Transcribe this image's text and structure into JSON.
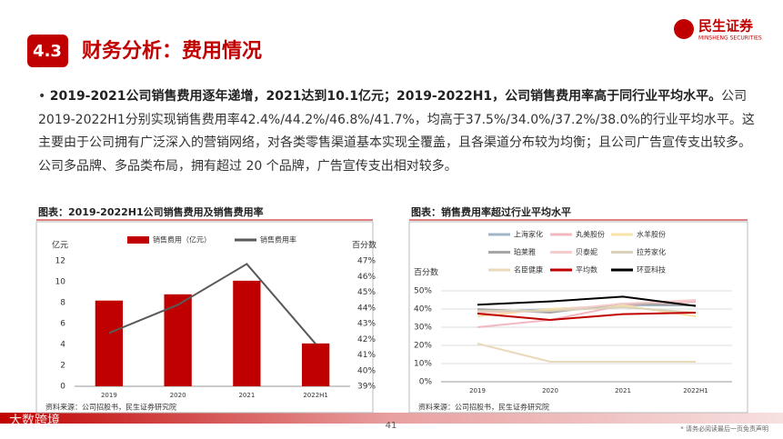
{
  "header": {
    "section": "4.3",
    "title": "财务分析：费用情况",
    "logo_cn": "民生证券",
    "logo_en": "MINSHENG SECURITIES"
  },
  "bullet": {
    "bold": "2019-2021公司销售费用逐年递增，2021达到10.1亿元；2019-2022H1，公司销售费用率高于同行业平均水平。",
    "text": "公司2019-2022H1分别实现销售费用率42.4%/44.2%/46.8%/41.7%，均高于37.5%/34.0%/37.2%/38.0%的行业平均水平。这主要由于公司拥有广泛深入的营销网络，对各类零售渠道基本实现全覆盖，且各渠道分布较为均衡；且公司广告宣传支出较多。公司多品牌、多品类布局，拥有超过 20 个品牌，广告宣传支出相对较多。"
  },
  "chart_data": [
    {
      "type": "bar",
      "title": "图表：2019-2022H1公司销售费用及销售费用率",
      "ylabel": "亿元",
      "y2label": "百分数",
      "source": "资料来源：公司招股书，民生证券研究院",
      "categories": [
        "2019",
        "2020",
        "2021",
        "2022H1"
      ],
      "series": [
        {
          "name": "销售费用（亿元）",
          "type": "bar",
          "color": "#c00000",
          "values": [
            8.2,
            8.8,
            10.1,
            4.1
          ]
        },
        {
          "name": "销售费用率",
          "type": "line",
          "axis": "y2",
          "color": "#595959",
          "values": [
            42.4,
            44.2,
            46.8,
            41.7
          ]
        }
      ],
      "ylim": [
        0,
        12
      ],
      "yticks": [
        0,
        2,
        4,
        6,
        8,
        10,
        12
      ],
      "y2lim": [
        39,
        47
      ],
      "y2ticks": [
        {
          "value": 39,
          "label": "39%"
        },
        {
          "value": 40,
          "label": "40%"
        },
        {
          "value": 41,
          "label": "41%"
        },
        {
          "value": 42,
          "label": "42%"
        },
        {
          "value": 43,
          "label": "43%"
        },
        {
          "value": 44,
          "label": "44%"
        },
        {
          "value": 45,
          "label": "45%"
        },
        {
          "value": 46,
          "label": "46%"
        },
        {
          "value": 47,
          "label": "47%"
        }
      ],
      "grid": false
    },
    {
      "type": "line",
      "title": "图表：销售费用率超过行业平均水平",
      "ylabel": "百分数",
      "source": "资料来源：公司招股书，民生证券研究院",
      "categories": [
        "2019",
        "2020",
        "2021",
        "2022H1"
      ],
      "series": [
        {
          "name": "上海家化",
          "color": "#9fb6c8",
          "values": [
            38,
            40,
            42,
            42
          ]
        },
        {
          "name": "丸美股份",
          "color": "#f2b8c0",
          "values": [
            30,
            34,
            42,
            44
          ]
        },
        {
          "name": "水羊股份",
          "color": "#f7e3a8",
          "values": [
            36,
            40,
            42,
            36
          ]
        },
        {
          "name": "珀莱雅",
          "color": "#a6a6a6",
          "values": [
            40,
            38,
            43,
            42
          ]
        },
        {
          "name": "贝泰妮",
          "color": "#f4cccc",
          "values": [
            38,
            39,
            43,
            45
          ]
        },
        {
          "name": "拉芳家化",
          "color": "#d9d2b8",
          "values": [
            39,
            39,
            41,
            38
          ]
        },
        {
          "name": "名臣健康",
          "color": "#ead9b8",
          "values": [
            21,
            11,
            11,
            11
          ]
        },
        {
          "name": "平均数",
          "color": "#c00000",
          "values": [
            37.5,
            34.0,
            37.2,
            38.0
          ]
        },
        {
          "name": "环亚科技",
          "color": "#000000",
          "values": [
            42.4,
            44.2,
            46.8,
            41.7
          ]
        }
      ],
      "ylim": [
        0,
        50
      ],
      "yticks": [
        {
          "value": 0,
          "label": "0%"
        },
        {
          "value": 10,
          "label": "10%"
        },
        {
          "value": 20,
          "label": "20%"
        },
        {
          "value": 30,
          "label": "30%"
        },
        {
          "value": 40,
          "label": "40%"
        },
        {
          "value": 50,
          "label": "50%"
        }
      ],
      "grid": true
    }
  ],
  "footer": {
    "page": "41",
    "disclaimer": "* 请务必阅读最后一页免责声明",
    "watermark": "大数跨境"
  }
}
